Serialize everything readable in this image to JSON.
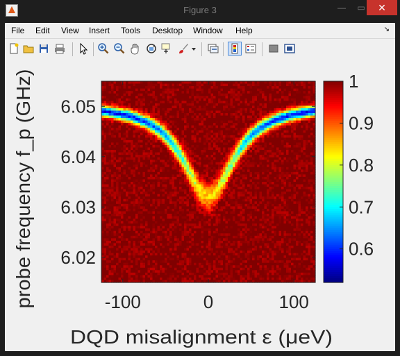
{
  "window": {
    "title": "Figure 3",
    "buttons": {
      "minimize": "—",
      "maximize": "▭",
      "close": "✕"
    }
  },
  "menubar": {
    "items": [
      "File",
      "Edit",
      "View",
      "Insert",
      "Tools",
      "Desktop",
      "Window",
      "Help"
    ],
    "overflow_arrow": "↘"
  },
  "toolbar": {
    "icons": [
      "new-figure-icon",
      "open-file-icon",
      "save-icon",
      "print-icon",
      "pointer-icon",
      "zoom-in-icon",
      "zoom-out-icon",
      "pan-hand-icon",
      "rotate-3d-icon",
      "data-cursor-icon",
      "brush-icon",
      "brush-dropdown-icon",
      "link-plot-icon",
      "colorbar-icon",
      "legend-icon",
      "hide-plot-tools-icon",
      "show-plot-tools-icon"
    ]
  },
  "chart_data": {
    "type": "heatmap",
    "title": "",
    "xlabel": "DQD misalignment ε (μeV)",
    "ylabel": "probe frequency f_p (GHz)",
    "xlim": [
      -125,
      125
    ],
    "ylim": [
      6.015,
      6.055
    ],
    "xticks": [
      -100,
      0,
      100
    ],
    "xtick_labels": [
      "-100",
      "0",
      "100"
    ],
    "yticks": [
      6.02,
      6.03,
      6.04,
      6.05
    ],
    "ytick_labels": [
      "6.02",
      "6.03",
      "6.04",
      "6.05"
    ],
    "colormap": "jet",
    "clim": [
      0.52,
      1.0
    ],
    "colorbar": {
      "ticks": [
        0.6,
        0.7,
        0.8,
        0.9,
        1.0
      ],
      "tick_labels": [
        "0.6",
        "0.7",
        "0.8",
        "0.9",
        "1"
      ]
    },
    "feature": {
      "description_values": {
        "resonance_far_detuned_GHz": 6.0505,
        "resonance_min_at_zero_detuning_GHz": 6.032,
        "dip_min_value": 0.55,
        "dip_width_ueV": 38
      }
    }
  }
}
